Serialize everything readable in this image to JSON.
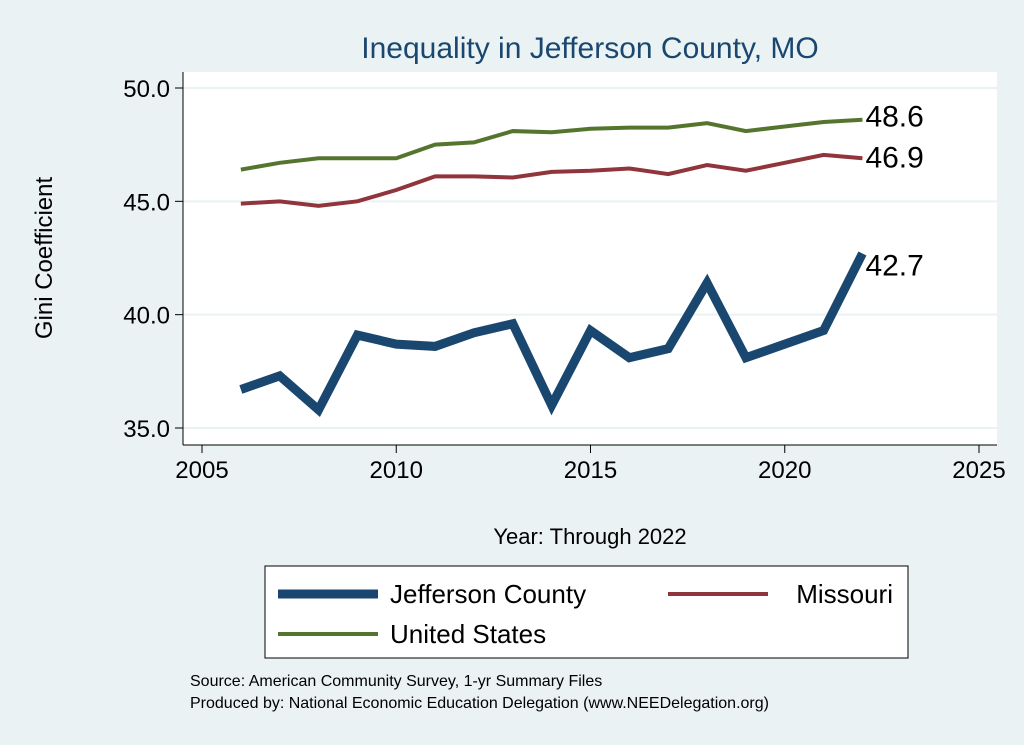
{
  "chart_data": {
    "type": "line",
    "title": "Inequality in Jefferson County, MO",
    "xlabel": "Year: Through 2022",
    "ylabel": "Gini Coefficient",
    "xlim": [
      2005,
      2025
    ],
    "ylim": [
      35,
      50
    ],
    "xticks": [
      2005,
      2010,
      2015,
      2020,
      2025
    ],
    "xtick_labels": [
      "2005",
      "2010",
      "2015",
      "2020",
      "2025"
    ],
    "yticks": [
      35,
      40,
      45,
      50
    ],
    "ytick_labels": [
      "35.0",
      "40.0",
      "45.0",
      "50.0"
    ],
    "grid": true,
    "legend_position": "bottom",
    "x": [
      2006,
      2007,
      2008,
      2009,
      2010,
      2011,
      2012,
      2013,
      2014,
      2015,
      2016,
      2017,
      2018,
      2019,
      2020,
      2021,
      2022
    ],
    "series": [
      {
        "name": "Jefferson County",
        "color": "#1a476f",
        "end_label": "42.7",
        "values": [
          36.7,
          37.3,
          35.8,
          39.1,
          38.7,
          38.6,
          39.2,
          39.6,
          36.0,
          39.3,
          38.1,
          38.5,
          41.4,
          38.1,
          38.7,
          39.3,
          42.7
        ]
      },
      {
        "name": "Missouri",
        "color": "#90353b",
        "end_label": "46.9",
        "values": [
          44.9,
          45.0,
          44.8,
          45.0,
          45.5,
          46.1,
          46.1,
          46.05,
          46.3,
          46.35,
          46.45,
          46.2,
          46.6,
          46.35,
          46.7,
          47.05,
          46.9
        ]
      },
      {
        "name": "United States",
        "color": "#55752f",
        "end_label": "48.6",
        "values": [
          46.4,
          46.7,
          46.9,
          46.9,
          46.9,
          47.5,
          47.6,
          48.1,
          48.05,
          48.2,
          48.25,
          48.25,
          48.45,
          48.1,
          48.3,
          48.5,
          48.6
        ]
      }
    ],
    "notes": [
      "Source: American Community Survey, 1-yr Summary Files",
      "Produced by: National Economic Education Delegation (www.NEEDelegation.org)"
    ]
  }
}
